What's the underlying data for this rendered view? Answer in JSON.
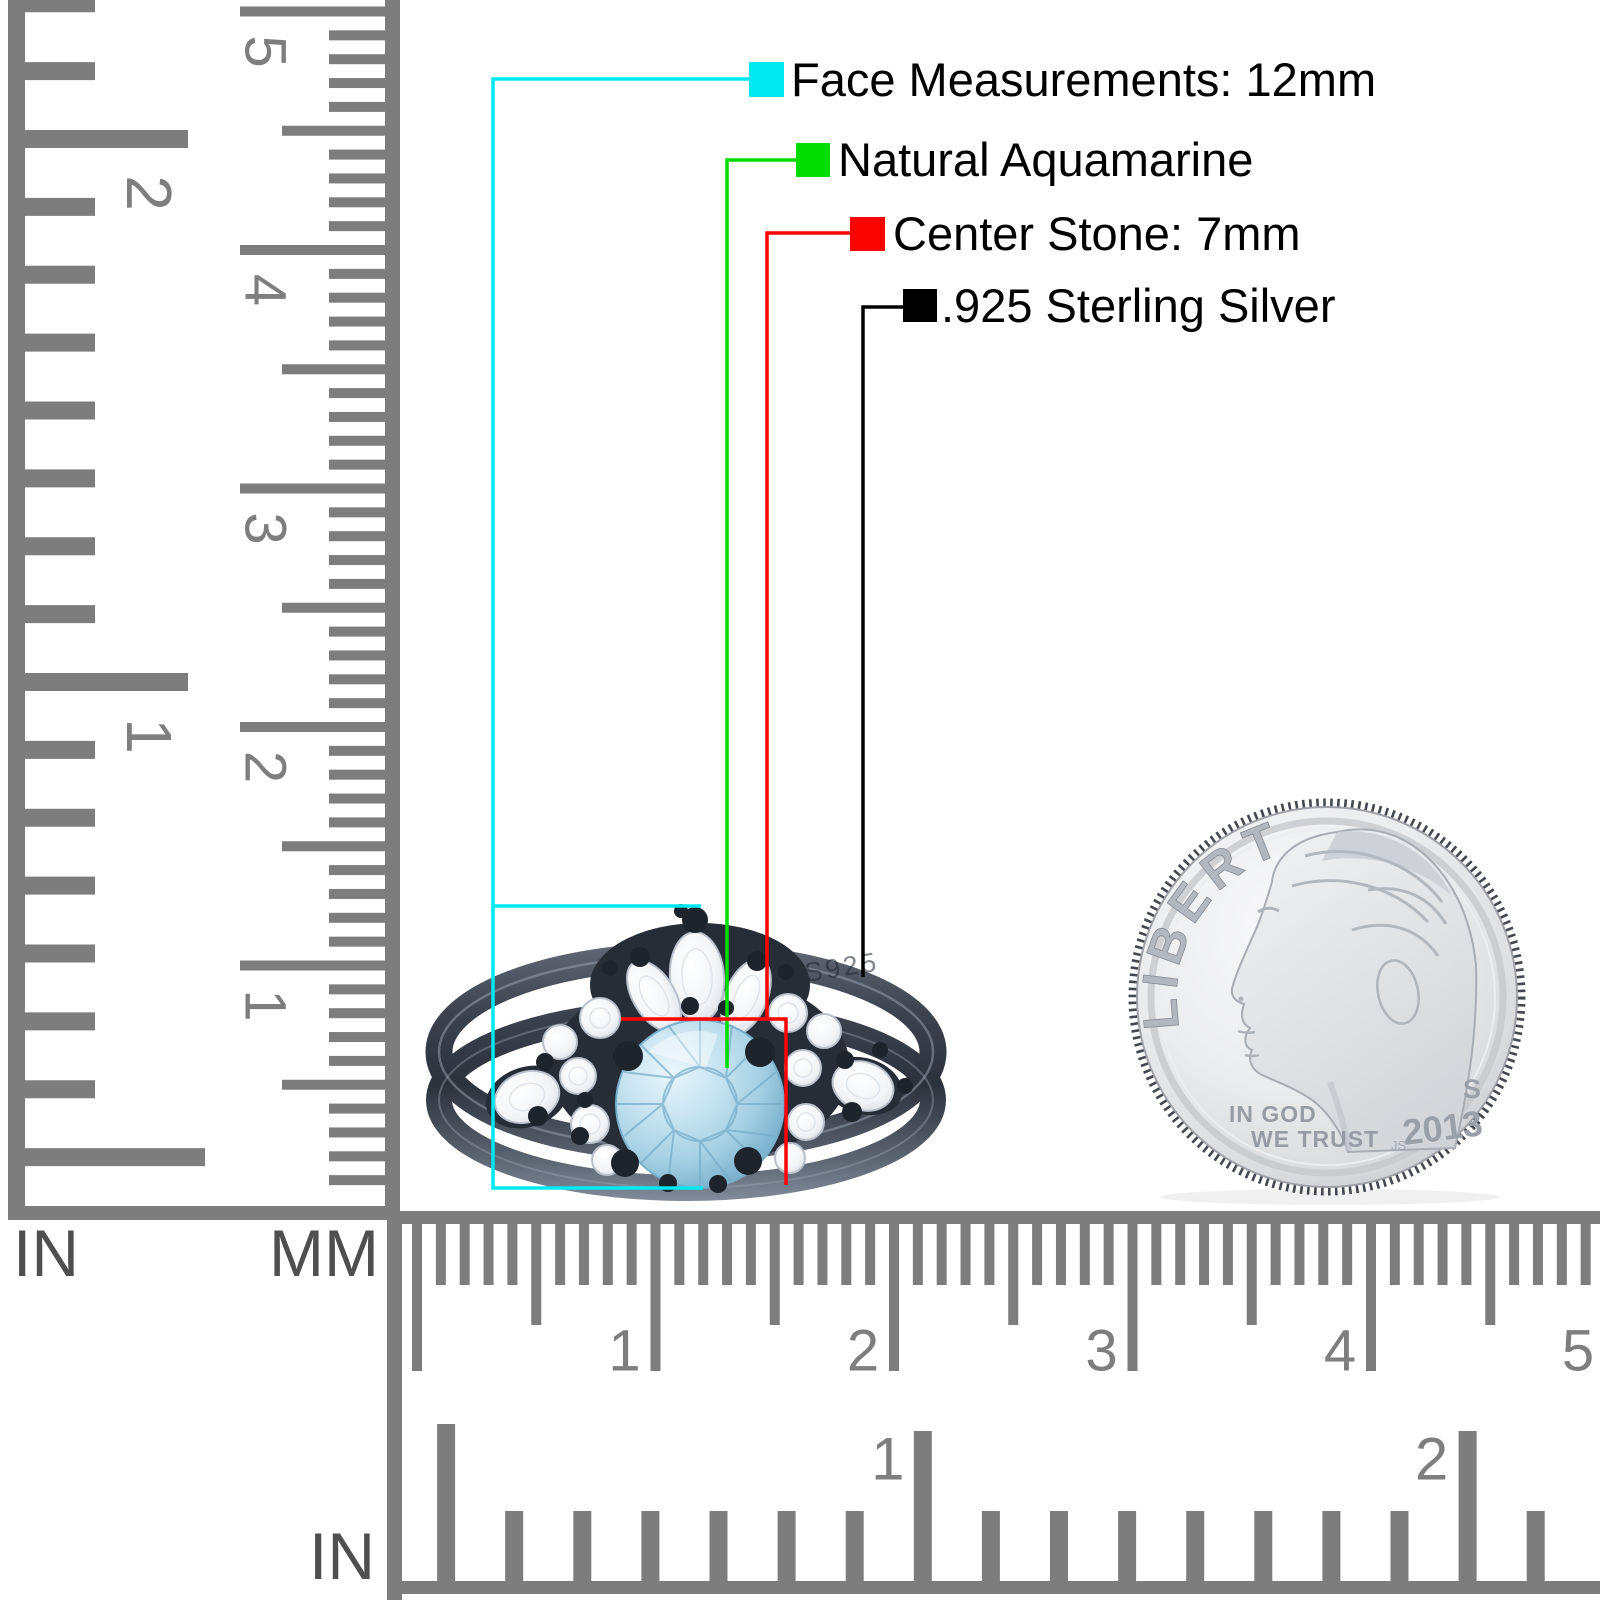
{
  "callouts": [
    {
      "id": "face",
      "label": "Face Measurements: 12mm",
      "color": "#00E8F2"
    },
    {
      "id": "gem",
      "label": "Natural Aquamarine",
      "color": "#00DC00"
    },
    {
      "id": "center",
      "label": "Center Stone: 7mm",
      "color": "#FA0400"
    },
    {
      "id": "metal",
      "label": ".925 Sterling Silver",
      "color": "#000000"
    }
  ],
  "ring": {
    "engraving": "S925"
  },
  "coin": {
    "legend": "LIBERTY",
    "motto_line1": "IN GOD",
    "motto_line2": "WE TRUST",
    "mint_mark": "S",
    "year": "2013",
    "designer_initials": "JS"
  },
  "ruler_left": {
    "unit_left": "IN",
    "unit_right": "MM",
    "inch_labels": [
      "2",
      "1"
    ],
    "cm_labels": [
      "5",
      "4",
      "3",
      "2",
      "1"
    ]
  },
  "ruler_bottom": {
    "unit": "IN",
    "cm_labels": [
      "1",
      "2",
      "3",
      "4",
      "5"
    ],
    "inch_labels": [
      "1",
      "2"
    ]
  },
  "colors": {
    "ruler": "#7D7D7D",
    "ruler_text": "#7E7E7E",
    "unit_text": "#4F4F4F",
    "label_text": "#000000",
    "band_dark": "#323945",
    "band_light": "#8E98A6",
    "stone_blue": "#A9D2E4",
    "coin_silver": "#E9EAEC"
  }
}
